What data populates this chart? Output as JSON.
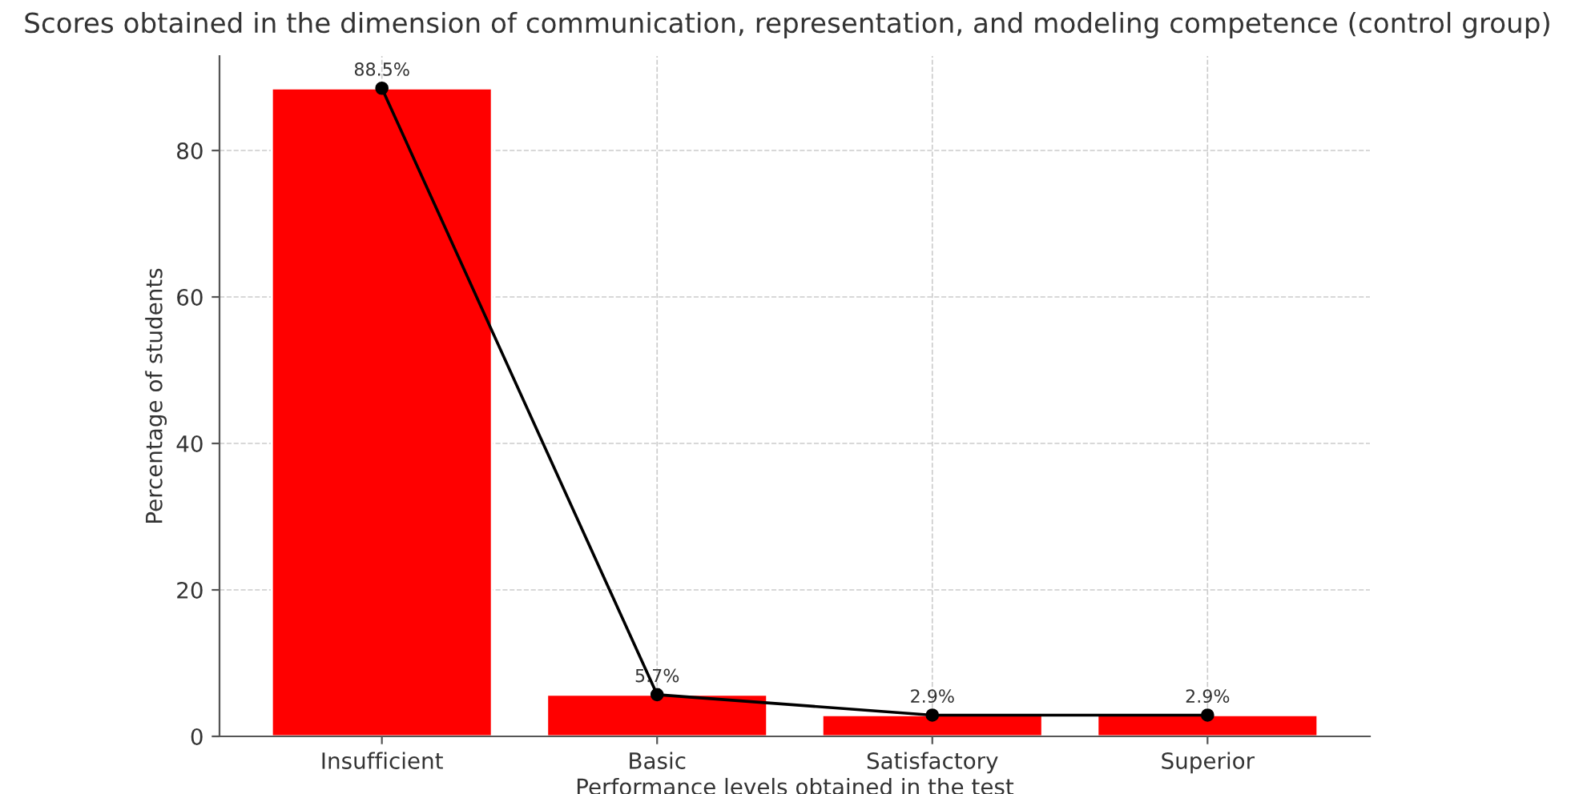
{
  "chart_data": {
    "type": "bar",
    "title": "Scores obtained in the dimension of communication, representation, and modeling competence (control group)",
    "xlabel": "Performance levels obtained in the test",
    "ylabel": "Percentage of students",
    "categories": [
      "Insufficient",
      "Basic",
      "Satisfactory",
      "Superior"
    ],
    "series": [
      {
        "color": "#ff0000",
        "values": [
          88.5,
          5.7,
          2.9,
          2.9
        ]
      },
      {
        "type": "line",
        "color": "#000000",
        "values": [
          88.5,
          5.7,
          2.9,
          2.9
        ],
        "value_labels": [
          "88.5%",
          "5.7%",
          "2.9%",
          "2.9%"
        ]
      }
    ],
    "ylim": [
      0,
      92.9
    ],
    "yticks": [
      0,
      20,
      40,
      60,
      80
    ],
    "grid": true,
    "marker": "circle",
    "line_style": "solid"
  }
}
